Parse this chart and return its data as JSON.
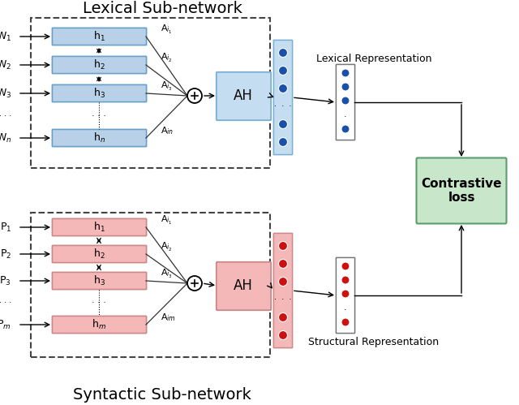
{
  "title_top": "Lexical Sub-network",
  "title_bottom": "Syntactic Sub-network",
  "ah_label": "AH",
  "contrastive_label": "Contrastive\nloss",
  "lexical_rep_label": "Lexical Representation",
  "structural_rep_label": "Structural Representation",
  "box_blue_fill": "#b8d0e8",
  "box_blue_edge": "#6a9fc8",
  "box_pink_fill": "#f4b8b8",
  "box_pink_edge": "#cc8888",
  "ah_blue_fill": "#c5ddf0",
  "ah_blue_edge": "#7aafd4",
  "ah_pink_fill": "#f4b8b8",
  "ah_pink_edge": "#cc8888",
  "dot_col_blue_fill": "#c5ddf0",
  "dot_col_blue_edge": "#7aafd4",
  "dot_col_pink_fill": "#f4b8b8",
  "dot_col_pink_edge": "#cc8888",
  "contrastive_fill": "#c8e6c9",
  "contrastive_edge": "#5a9e6f",
  "dot_blue": "#1a4faa",
  "dot_red": "#cc1111",
  "dashed_box_color": "#444444",
  "background": "white",
  "arrow_color": "#333333"
}
